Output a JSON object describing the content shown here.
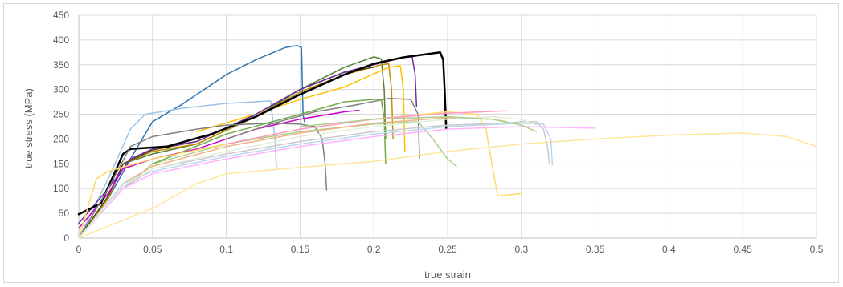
{
  "chart_data": {
    "type": "line",
    "title": "",
    "xlabel": "true strain",
    "ylabel": "true stress (MPa)",
    "xlim": [
      0,
      0.5
    ],
    "ylim": [
      0,
      450
    ],
    "x_ticks": [
      "0",
      "0.05",
      "0.1",
      "0.15",
      "0.2",
      "0.25",
      "0.3",
      "0.35",
      "0.4",
      "0.45",
      "0.5"
    ],
    "y_ticks": [
      "0",
      "50",
      "100",
      "150",
      "200",
      "250",
      "300",
      "350",
      "400",
      "450"
    ],
    "grid": true,
    "legend": "none",
    "series": [
      {
        "color": "#2e75b6",
        "width": 1.5,
        "points": [
          [
            0,
            0
          ],
          [
            0.02,
            80
          ],
          [
            0.035,
            160
          ],
          [
            0.05,
            235
          ],
          [
            0.07,
            270
          ],
          [
            0.1,
            330
          ],
          [
            0.12,
            360
          ],
          [
            0.14,
            385
          ],
          [
            0.148,
            389
          ],
          [
            0.151,
            385
          ],
          [
            0.152,
            250
          ],
          [
            0.153,
            235
          ]
        ]
      },
      {
        "color": "#9dc3e6",
        "width": 1.5,
        "points": [
          [
            0,
            0
          ],
          [
            0.02,
            120
          ],
          [
            0.035,
            220
          ],
          [
            0.045,
            250
          ],
          [
            0.07,
            262
          ],
          [
            0.1,
            272
          ],
          [
            0.13,
            277
          ],
          [
            0.133,
            200
          ],
          [
            0.134,
            140
          ]
        ]
      },
      {
        "color": "#548235",
        "width": 1.5,
        "points": [
          [
            0,
            0
          ],
          [
            0.02,
            80
          ],
          [
            0.03,
            150
          ],
          [
            0.05,
            170
          ],
          [
            0.08,
            190
          ],
          [
            0.12,
            245
          ],
          [
            0.15,
            300
          ],
          [
            0.18,
            345
          ],
          [
            0.2,
            366
          ],
          [
            0.205,
            362
          ],
          [
            0.207,
            300
          ],
          [
            0.208,
            200
          ]
        ]
      },
      {
        "color": "#bf9000",
        "width": 1.5,
        "points": [
          [
            0,
            0
          ],
          [
            0.02,
            80
          ],
          [
            0.03,
            150
          ],
          [
            0.05,
            175
          ],
          [
            0.08,
            190
          ],
          [
            0.12,
            245
          ],
          [
            0.15,
            295
          ],
          [
            0.18,
            330
          ],
          [
            0.205,
            350
          ],
          [
            0.21,
            352
          ],
          [
            0.212,
            300
          ],
          [
            0.213,
            200
          ]
        ]
      },
      {
        "color": "#5a3e1b",
        "width": 1.5,
        "points": [
          [
            0,
            0
          ],
          [
            0.02,
            85
          ],
          [
            0.03,
            150
          ],
          [
            0.05,
            178
          ],
          [
            0.08,
            195
          ],
          [
            0.12,
            250
          ],
          [
            0.15,
            300
          ],
          [
            0.18,
            335
          ],
          [
            0.2,
            345
          ]
        ]
      },
      {
        "color": "#ffc000",
        "width": 1.5,
        "points": [
          [
            0.08,
            215
          ],
          [
            0.12,
            250
          ],
          [
            0.15,
            280
          ],
          [
            0.18,
            305
          ],
          [
            0.21,
            345
          ],
          [
            0.218,
            348
          ],
          [
            0.22,
            300
          ],
          [
            0.221,
            175
          ]
        ]
      },
      {
        "color": "#7030a0",
        "width": 1.5,
        "points": [
          [
            0,
            30
          ],
          [
            0.02,
            100
          ],
          [
            0.035,
            160
          ],
          [
            0.05,
            180
          ],
          [
            0.08,
            195
          ],
          [
            0.12,
            250
          ],
          [
            0.15,
            300
          ],
          [
            0.18,
            335
          ],
          [
            0.22,
            365
          ],
          [
            0.226,
            366
          ],
          [
            0.228,
            330
          ],
          [
            0.229,
            265
          ]
        ]
      },
      {
        "color": "#cc00cc",
        "width": 1.5,
        "points": [
          [
            0,
            20
          ],
          [
            0.02,
            90
          ],
          [
            0.03,
            140
          ],
          [
            0.05,
            160
          ],
          [
            0.08,
            180
          ],
          [
            0.12,
            220
          ],
          [
            0.15,
            240
          ],
          [
            0.18,
            255
          ],
          [
            0.19,
            258
          ]
        ]
      },
      {
        "color": "#000000",
        "width": 2.5,
        "points": [
          [
            0,
            48
          ],
          [
            0.015,
            70
          ],
          [
            0.03,
            170
          ],
          [
            0.035,
            180
          ],
          [
            0.06,
            185
          ],
          [
            0.09,
            210
          ],
          [
            0.12,
            245
          ],
          [
            0.15,
            290
          ],
          [
            0.18,
            330
          ],
          [
            0.2,
            352
          ],
          [
            0.22,
            365
          ],
          [
            0.245,
            375
          ],
          [
            0.247,
            360
          ],
          [
            0.248,
            300
          ],
          [
            0.249,
            222
          ]
        ]
      },
      {
        "color": "#7f7f7f",
        "width": 1.5,
        "points": [
          [
            0,
            0
          ],
          [
            0.02,
            100
          ],
          [
            0.035,
            185
          ],
          [
            0.05,
            205
          ],
          [
            0.08,
            220
          ],
          [
            0.1,
            228
          ],
          [
            0.13,
            232
          ],
          [
            0.15,
            230
          ],
          [
            0.16,
            225
          ],
          [
            0.165,
            200
          ],
          [
            0.167,
            150
          ],
          [
            0.168,
            97
          ]
        ]
      },
      {
        "color": "#808080",
        "width": 1.5,
        "points": [
          [
            0.1,
            200
          ],
          [
            0.13,
            230
          ],
          [
            0.16,
            255
          ],
          [
            0.19,
            270
          ],
          [
            0.21,
            282
          ],
          [
            0.225,
            280
          ],
          [
            0.23,
            250
          ],
          [
            0.231,
            162
          ]
        ]
      },
      {
        "color": "#a9d18e",
        "width": 1.5,
        "points": [
          [
            0,
            0
          ],
          [
            0.03,
            100
          ],
          [
            0.05,
            150
          ],
          [
            0.1,
            190
          ],
          [
            0.15,
            215
          ],
          [
            0.2,
            230
          ],
          [
            0.23,
            235
          ],
          [
            0.24,
            200
          ],
          [
            0.25,
            160
          ],
          [
            0.256,
            145
          ]
        ]
      },
      {
        "color": "#70ad47",
        "width": 1.5,
        "points": [
          [
            0.05,
            150
          ],
          [
            0.1,
            210
          ],
          [
            0.15,
            250
          ],
          [
            0.18,
            275
          ],
          [
            0.2,
            280
          ],
          [
            0.205,
            280
          ],
          [
            0.207,
            240
          ],
          [
            0.208,
            150
          ]
        ]
      },
      {
        "color": "#ffd966",
        "width": 1.5,
        "points": [
          [
            0,
            0
          ],
          [
            0.012,
            120
          ],
          [
            0.02,
            135
          ],
          [
            0.05,
            160
          ],
          [
            0.1,
            190
          ],
          [
            0.15,
            220
          ],
          [
            0.2,
            240
          ],
          [
            0.25,
            255
          ],
          [
            0.27,
            250
          ],
          [
            0.276,
            220
          ],
          [
            0.28,
            150
          ],
          [
            0.284,
            85
          ],
          [
            0.3,
            90
          ]
        ]
      },
      {
        "color": "#ffe699",
        "width": 1.5,
        "points": [
          [
            0,
            0
          ],
          [
            0.05,
            60
          ],
          [
            0.08,
            110
          ],
          [
            0.1,
            130
          ],
          [
            0.15,
            143
          ],
          [
            0.2,
            155
          ],
          [
            0.25,
            175
          ],
          [
            0.3,
            190
          ],
          [
            0.35,
            200
          ],
          [
            0.4,
            208
          ],
          [
            0.45,
            212
          ],
          [
            0.48,
            205
          ],
          [
            0.5,
            185
          ]
        ]
      },
      {
        "color": "#f4b183",
        "width": 1.5,
        "points": [
          [
            0,
            0
          ],
          [
            0.03,
            110
          ],
          [
            0.05,
            145
          ],
          [
            0.1,
            185
          ],
          [
            0.15,
            212
          ],
          [
            0.2,
            232
          ],
          [
            0.25,
            243
          ],
          [
            0.28,
            240
          ],
          [
            0.29,
            235
          ]
        ]
      },
      {
        "color": "#c9c9c9",
        "width": 1.5,
        "points": [
          [
            0,
            0
          ],
          [
            0.03,
            100
          ],
          [
            0.05,
            140
          ],
          [
            0.1,
            170
          ],
          [
            0.15,
            195
          ],
          [
            0.2,
            215
          ],
          [
            0.25,
            228
          ],
          [
            0.29,
            232
          ],
          [
            0.3,
            235
          ],
          [
            0.31,
            235
          ],
          [
            0.315,
            220
          ],
          [
            0.318,
            180
          ],
          [
            0.319,
            150
          ]
        ]
      },
      {
        "color": "#bdd7ee",
        "width": 1.5,
        "points": [
          [
            0,
            0
          ],
          [
            0.03,
            110
          ],
          [
            0.05,
            135
          ],
          [
            0.1,
            165
          ],
          [
            0.15,
            190
          ],
          [
            0.2,
            210
          ],
          [
            0.25,
            225
          ],
          [
            0.3,
            232
          ],
          [
            0.315,
            230
          ],
          [
            0.32,
            200
          ],
          [
            0.321,
            148
          ]
        ]
      },
      {
        "color": "#ffb3ff",
        "width": 1.5,
        "points": [
          [
            0,
            0
          ],
          [
            0.03,
            100
          ],
          [
            0.05,
            130
          ],
          [
            0.1,
            160
          ],
          [
            0.15,
            185
          ],
          [
            0.2,
            205
          ],
          [
            0.25,
            220
          ],
          [
            0.3,
            225
          ],
          [
            0.35,
            222
          ]
        ]
      },
      {
        "color": "#ff99cc",
        "width": 1.5,
        "points": [
          [
            0.1,
            190
          ],
          [
            0.15,
            220
          ],
          [
            0.2,
            240
          ],
          [
            0.25,
            252
          ],
          [
            0.29,
            257
          ]
        ]
      },
      {
        "color": "#e2efda",
        "width": 1.5,
        "points": [
          [
            0,
            0
          ],
          [
            0.03,
            105
          ],
          [
            0.05,
            140
          ],
          [
            0.1,
            175
          ],
          [
            0.15,
            205
          ],
          [
            0.2,
            225
          ],
          [
            0.25,
            240
          ],
          [
            0.28,
            245
          ],
          [
            0.3,
            240
          ],
          [
            0.31,
            228
          ]
        ]
      },
      {
        "color": "#a9d18e",
        "width": 1.5,
        "points": [
          [
            0.15,
            225
          ],
          [
            0.2,
            240
          ],
          [
            0.25,
            245
          ],
          [
            0.28,
            240
          ],
          [
            0.3,
            228
          ],
          [
            0.31,
            215
          ]
        ]
      }
    ]
  }
}
